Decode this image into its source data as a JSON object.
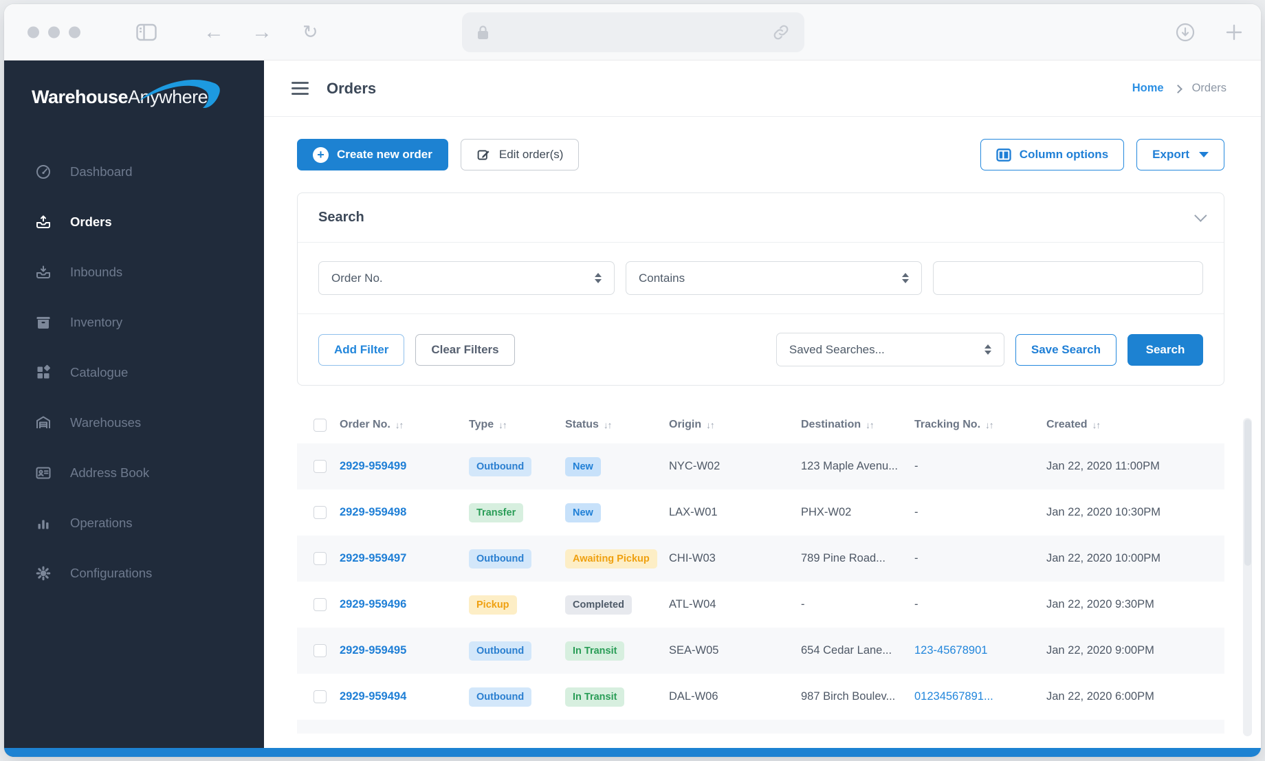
{
  "colors": {
    "accent_blue": "#1d82d2",
    "link_blue": "#2286db",
    "sidebar_bg": "#202b3b"
  },
  "brand": {
    "name_bold": "Warehouse",
    "name_light": "Anywhere"
  },
  "sidebar": {
    "items": [
      {
        "id": "dashboard",
        "label": "Dashboard",
        "icon": "gauge",
        "active": false
      },
      {
        "id": "orders",
        "label": "Orders",
        "icon": "tray-out",
        "active": true
      },
      {
        "id": "inbounds",
        "label": "Inbounds",
        "icon": "tray-in",
        "active": false
      },
      {
        "id": "inventory",
        "label": "Inventory",
        "icon": "box",
        "active": false
      },
      {
        "id": "catalogue",
        "label": "Catalogue",
        "icon": "grid",
        "active": false
      },
      {
        "id": "warehouses",
        "label": "Warehouses",
        "icon": "warehouse",
        "active": false
      },
      {
        "id": "address-book",
        "label": "Address Book",
        "icon": "id-card",
        "active": false
      },
      {
        "id": "operations",
        "label": "Operations",
        "icon": "bar-chart",
        "active": false
      },
      {
        "id": "configurations",
        "label": "Configurations",
        "icon": "gear",
        "active": false
      }
    ]
  },
  "header": {
    "title": "Orders",
    "breadcrumb_home": "Home",
    "breadcrumb_current": "Orders"
  },
  "toolbar": {
    "create_label": "Create new order",
    "edit_label": "Edit order(s)",
    "column_options_label": "Column options",
    "export_label": "Export"
  },
  "search_panel": {
    "title": "Search",
    "field_value": "Order No.",
    "operator_value": "Contains",
    "term_value": "",
    "add_filter_label": "Add Filter",
    "clear_filters_label": "Clear Filters",
    "saved_searches_value": "Saved Searches...",
    "save_search_label": "Save Search",
    "search_label": "Search"
  },
  "table": {
    "sort_glyph": "↓↑",
    "columns": [
      {
        "key": "order_no",
        "label": "Order No."
      },
      {
        "key": "type",
        "label": "Type"
      },
      {
        "key": "status",
        "label": "Status"
      },
      {
        "key": "origin",
        "label": "Origin"
      },
      {
        "key": "destination",
        "label": "Destination"
      },
      {
        "key": "tracking",
        "label": "Tracking No."
      },
      {
        "key": "created",
        "label": "Created"
      }
    ],
    "badge_colors": {
      "blue": {
        "bg": "#d3e7fa",
        "fg": "#2b7fd0"
      },
      "strong-blue": {
        "bg": "#c7e1fa",
        "fg": "#1f7fd6"
      },
      "green": {
        "bg": "#d7efdf",
        "fg": "#2a9d57"
      },
      "yellow": {
        "bg": "#fdeec6",
        "fg": "#efa00f"
      },
      "gray": {
        "bg": "#e7e9ee",
        "fg": "#4e5a68"
      }
    },
    "rows": [
      {
        "order_no": "2929-959499",
        "type": {
          "label": "Outbound",
          "color": "blue"
        },
        "status": {
          "label": "New",
          "color": "strong-blue"
        },
        "origin": "NYC-W02",
        "destination": "123 Maple Avenu...",
        "tracking": {
          "label": "-",
          "link": false
        },
        "created": "Jan 22, 2020 11:00PM"
      },
      {
        "order_no": "2929-959498",
        "type": {
          "label": "Transfer",
          "color": "green"
        },
        "status": {
          "label": "New",
          "color": "strong-blue"
        },
        "origin": "LAX-W01",
        "destination": "PHX-W02",
        "tracking": {
          "label": "-",
          "link": false
        },
        "created": "Jan 22, 2020 10:30PM"
      },
      {
        "order_no": "2929-959497",
        "type": {
          "label": "Outbound",
          "color": "blue"
        },
        "status": {
          "label": "Awaiting Pickup",
          "color": "yellow"
        },
        "origin": "CHI-W03",
        "destination": "789 Pine Road...",
        "tracking": {
          "label": "-",
          "link": false
        },
        "created": "Jan 22, 2020 10:00PM"
      },
      {
        "order_no": "2929-959496",
        "type": {
          "label": "Pickup",
          "color": "yellow"
        },
        "status": {
          "label": "Completed",
          "color": "gray"
        },
        "origin": "ATL-W04",
        "destination": "-",
        "tracking": {
          "label": "-",
          "link": false
        },
        "created": "Jan 22, 2020 9:30PM"
      },
      {
        "order_no": "2929-959495",
        "type": {
          "label": "Outbound",
          "color": "blue"
        },
        "status": {
          "label": "In Transit",
          "color": "green"
        },
        "origin": "SEA-W05",
        "destination": "654 Cedar Lane...",
        "tracking": {
          "label": "123-45678901",
          "link": true
        },
        "created": "Jan 22, 2020 9:00PM"
      },
      {
        "order_no": "2929-959494",
        "type": {
          "label": "Outbound",
          "color": "blue"
        },
        "status": {
          "label": "In Transit",
          "color": "green"
        },
        "origin": "DAL-W06",
        "destination": "987 Birch Boulev...",
        "tracking": {
          "label": "01234567891...",
          "link": true
        },
        "created": "Jan 22, 2020 6:00PM"
      }
    ]
  }
}
